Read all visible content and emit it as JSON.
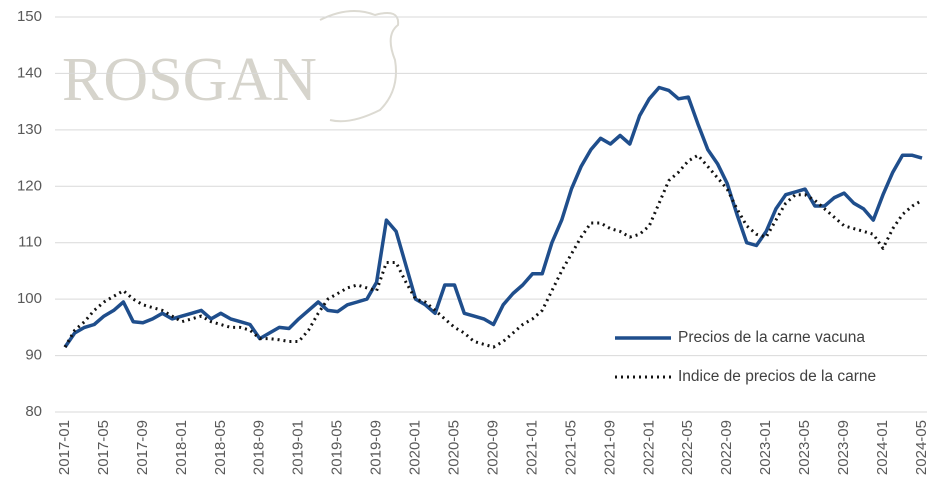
{
  "chart_data": {
    "type": "line",
    "watermark": "ROSGAN",
    "categories": [
      "2017-01",
      null,
      null,
      null,
      "2017-05",
      null,
      null,
      null,
      "2017-09",
      null,
      null,
      null,
      "2018-01",
      null,
      null,
      null,
      "2018-05",
      null,
      null,
      null,
      "2018-09",
      null,
      null,
      null,
      "2019-01",
      null,
      null,
      null,
      "2019-05",
      null,
      null,
      null,
      "2019-09",
      null,
      null,
      null,
      "2020-01",
      null,
      null,
      null,
      "2020-05",
      null,
      null,
      null,
      "2020-09",
      null,
      null,
      null,
      "2021-01",
      null,
      null,
      null,
      "2021-05",
      null,
      null,
      null,
      "2021-09",
      null,
      null,
      null,
      "2022-01",
      null,
      null,
      null,
      "2022-05",
      null,
      null,
      null,
      "2022-09",
      null,
      null,
      null,
      "2023-01",
      null,
      null,
      null,
      "2023-05",
      null,
      null,
      null,
      "2023-09",
      null,
      null,
      null,
      "2024-01",
      null,
      null,
      null,
      "2024-05"
    ],
    "series": [
      {
        "name": "Precios de la carne vacuna",
        "color": "#1f4e8c",
        "style": "solid",
        "values": [
          91.5,
          94,
          95,
          95.5,
          97,
          98,
          99.5,
          96,
          95.8,
          96.5,
          97.5,
          96.5,
          97,
          97.5,
          98,
          96.5,
          97.5,
          96.5,
          96,
          95.5,
          93,
          94,
          95,
          94.8,
          96.5,
          98,
          99.5,
          98,
          97.8,
          99,
          99.5,
          100,
          103,
          114,
          112,
          106,
          100,
          99,
          97.5,
          102.5,
          102.5,
          97.5,
          97,
          96.5,
          95.5,
          99,
          101,
          102.5,
          104.5,
          104.5,
          110,
          114,
          119.5,
          123.5,
          126.5,
          128.5,
          127.5,
          129,
          127.5,
          132.5,
          135.5,
          137.5,
          137,
          135.5,
          135.8,
          131,
          126.5,
          124,
          120.5,
          115,
          110,
          109.5,
          112,
          116,
          118.5,
          119,
          119.5,
          116.5,
          116.5,
          118,
          118.8,
          117,
          116,
          114,
          118.5,
          122.5,
          125.5,
          125.5,
          125
        ]
      },
      {
        "name": "Indice de precios de la carne",
        "color": "#111111",
        "style": "dotted",
        "values": [
          91.5,
          94.5,
          96,
          98,
          99.5,
          100.5,
          101.5,
          100,
          99,
          98.5,
          98,
          97,
          96,
          96.5,
          97,
          96,
          95.5,
          95,
          95,
          94.5,
          93,
          93,
          92.8,
          92.5,
          92.5,
          94.5,
          97.5,
          100,
          101,
          102,
          102.5,
          102,
          101.5,
          106.5,
          106.5,
          103,
          100,
          99.5,
          98,
          96.5,
          95,
          94,
          92.5,
          92,
          91.5,
          92.5,
          94,
          95.5,
          96.5,
          98,
          101.5,
          105,
          108,
          111,
          113.5,
          113.5,
          112.5,
          112,
          111,
          111.5,
          113,
          117,
          121,
          122.5,
          124.5,
          125.5,
          123.5,
          121.5,
          119.5,
          116,
          113,
          111.5,
          111,
          114,
          117,
          118.5,
          118.5,
          117.5,
          116,
          114.5,
          113,
          112.5,
          112,
          111.5,
          109,
          112.5,
          115,
          116.5,
          117.5
        ]
      }
    ],
    "ylim": [
      80,
      150
    ],
    "yticks": [
      80,
      90,
      100,
      110,
      120,
      130,
      140,
      150
    ],
    "grid": true,
    "legend": "lower right"
  }
}
